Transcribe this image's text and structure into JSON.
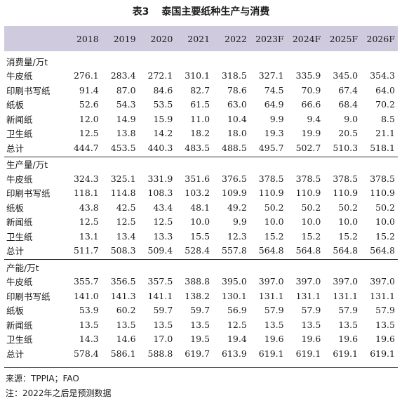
{
  "title": {
    "number": "表3",
    "text": "泰国主要纸种生产与消费"
  },
  "columns": [
    "2018",
    "2019",
    "2020",
    "2021",
    "2022",
    "2023F",
    "2024F",
    "2025F",
    "2026F"
  ],
  "sections": [
    {
      "heading": "消费量/万t",
      "rows": [
        {
          "label": "牛皮纸",
          "values": [
            "276.1",
            "283.4",
            "272.1",
            "310.1",
            "318.5",
            "327.1",
            "335.9",
            "345.0",
            "354.3"
          ]
        },
        {
          "label": "印刷书写纸",
          "values": [
            "91.4",
            "87.0",
            "84.6",
            "82.7",
            "78.6",
            "74.5",
            "70.9",
            "67.4",
            "64.0"
          ]
        },
        {
          "label": "纸板",
          "values": [
            "52.6",
            "54.3",
            "53.5",
            "61.5",
            "63.0",
            "64.9",
            "66.6",
            "68.4",
            "70.2"
          ]
        },
        {
          "label": "新闻纸",
          "values": [
            "12.0",
            "14.9",
            "15.9",
            "11.0",
            "10.4",
            "9.9",
            "9.4",
            "9.0",
            "8.5"
          ]
        },
        {
          "label": "卫生纸",
          "values": [
            "12.5",
            "13.8",
            "14.2",
            "18.2",
            "18.0",
            "19.3",
            "19.9",
            "20.5",
            "21.1"
          ]
        },
        {
          "label": "总计",
          "values": [
            "444.7",
            "453.5",
            "440.3",
            "483.5",
            "488.5",
            "495.7",
            "502.7",
            "510.3",
            "518.1"
          ]
        }
      ]
    },
    {
      "heading": "生产量/万t",
      "rows": [
        {
          "label": "牛皮纸",
          "values": [
            "324.3",
            "325.1",
            "331.9",
            "351.6",
            "376.5",
            "378.5",
            "378.5",
            "378.5",
            "378.5"
          ]
        },
        {
          "label": "印刷书写纸",
          "values": [
            "118.1",
            "114.8",
            "108.3",
            "103.2",
            "109.9",
            "110.9",
            "110.9",
            "110.9",
            "110.9"
          ]
        },
        {
          "label": "纸板",
          "values": [
            "43.8",
            "42.5",
            "43.4",
            "48.1",
            "49.2",
            "50.2",
            "50.2",
            "50.2",
            "50.2"
          ]
        },
        {
          "label": "新闻纸",
          "values": [
            "12.5",
            "12.5",
            "12.5",
            "10.0",
            "9.9",
            "10.0",
            "10.0",
            "10.0",
            "10.0"
          ]
        },
        {
          "label": "卫生纸",
          "values": [
            "13.1",
            "13.4",
            "13.3",
            "15.5",
            "12.3",
            "15.2",
            "15.2",
            "15.2",
            "15.2"
          ]
        },
        {
          "label": "总计",
          "values": [
            "511.7",
            "508.3",
            "509.4",
            "528.4",
            "557.8",
            "564.8",
            "564.8",
            "564.8",
            "564.8"
          ]
        }
      ]
    },
    {
      "heading": "产能/万t",
      "rows": [
        {
          "label": "牛皮纸",
          "values": [
            "355.7",
            "356.5",
            "357.5",
            "388.8",
            "395.0",
            "397.0",
            "397.0",
            "397.0",
            "397.0"
          ]
        },
        {
          "label": "印刷书写纸",
          "values": [
            "141.0",
            "141.3",
            "141.1",
            "138.2",
            "130.1",
            "131.1",
            "131.1",
            "131.1",
            "131.1"
          ]
        },
        {
          "label": "纸板",
          "values": [
            "53.9",
            "60.2",
            "59.7",
            "59.7",
            "56.9",
            "57.9",
            "57.9",
            "57.9",
            "57.9"
          ]
        },
        {
          "label": "新闻纸",
          "values": [
            "13.5",
            "13.5",
            "13.5",
            "13.5",
            "12.5",
            "13.5",
            "13.5",
            "13.5",
            "13.5"
          ]
        },
        {
          "label": "卫生纸",
          "values": [
            "14.3",
            "14.6",
            "17.0",
            "19.5",
            "19.4",
            "19.6",
            "19.6",
            "19.6",
            "19.6"
          ]
        },
        {
          "label": "总计",
          "values": [
            "578.4",
            "586.1",
            "588.8",
            "619.7",
            "613.9",
            "619.1",
            "619.1",
            "619.1",
            "619.1"
          ]
        }
      ]
    }
  ],
  "footer": {
    "source": "来源：TPPIA；FAO",
    "note": "注：2022年之后是预测数据"
  }
}
